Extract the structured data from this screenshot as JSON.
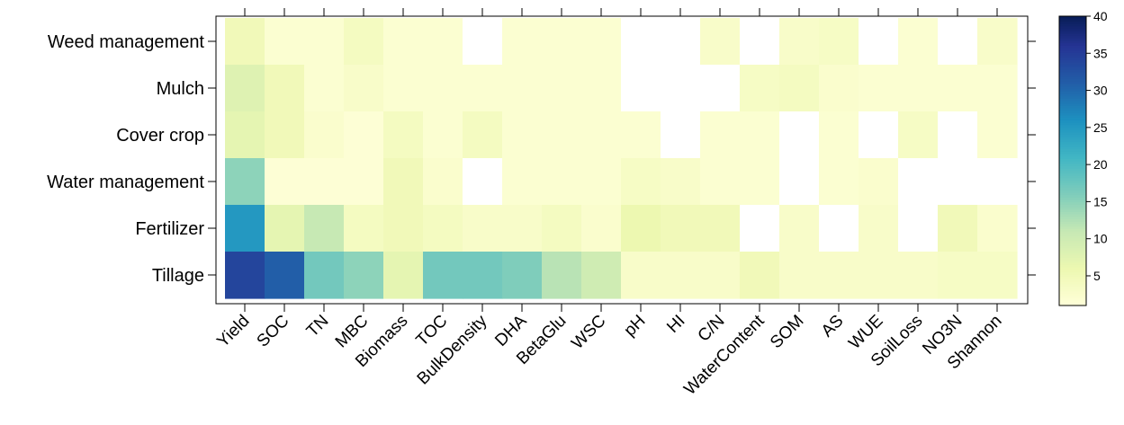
{
  "chart_data": {
    "type": "heatmap",
    "title": "",
    "xlabel": "",
    "ylabel": "",
    "columns": [
      "Yield",
      "SOC",
      "TN",
      "MBC",
      "Biomass",
      "TOC",
      "BulkDensity",
      "DHA",
      "BetaGlu",
      "WSC",
      "pH",
      "HI",
      "C/N",
      "WaterContent",
      "SOM",
      "AS",
      "WUE",
      "SoilLoss",
      "NO3N",
      "Shannon"
    ],
    "rows": [
      "Weed management",
      "Mulch",
      "Cover crop",
      "Water management",
      "Fertilizer",
      "Tillage"
    ],
    "values": [
      [
        5,
        2,
        2,
        4,
        2,
        2,
        null,
        2,
        2,
        2,
        null,
        null,
        3,
        null,
        3,
        3.5,
        null,
        2,
        null,
        3
      ],
      [
        8,
        5,
        2,
        3,
        2,
        2,
        2,
        2,
        2,
        2,
        null,
        null,
        null,
        3.5,
        4,
        2.5,
        2,
        2,
        2,
        2
      ],
      [
        7,
        5,
        2.5,
        1.5,
        4,
        2,
        4,
        2,
        2,
        2,
        2,
        null,
        2,
        2,
        null,
        2,
        null,
        3.5,
        null,
        2
      ],
      [
        15,
        1.5,
        1.5,
        1.5,
        5,
        2.5,
        null,
        2,
        2,
        2,
        3.5,
        3,
        2,
        2,
        null,
        2,
        2.5,
        null,
        null,
        null
      ],
      [
        25,
        7,
        11,
        4,
        5,
        4,
        3,
        3,
        4,
        2.5,
        6,
        5,
        5,
        null,
        3,
        null,
        3,
        null,
        5,
        2.5
      ],
      [
        34,
        31,
        17,
        15,
        7,
        17,
        17,
        16,
        12,
        10,
        3,
        3,
        3,
        5,
        3,
        3,
        3,
        3,
        3.5,
        3.5
      ]
    ],
    "color_scale": {
      "min": 1,
      "max": 40,
      "ticks": [
        5,
        10,
        15,
        20,
        25,
        30,
        35,
        40
      ],
      "stops": [
        {
          "v": 1,
          "c": "#ffffd9"
        },
        {
          "v": 6,
          "c": "#edf8b1"
        },
        {
          "v": 11,
          "c": "#c7e9b4"
        },
        {
          "v": 16,
          "c": "#7fcdbb"
        },
        {
          "v": 21,
          "c": "#41b6c4"
        },
        {
          "v": 26,
          "c": "#1d91c0"
        },
        {
          "v": 31,
          "c": "#225ea8"
        },
        {
          "v": 36,
          "c": "#253494"
        },
        {
          "v": 40,
          "c": "#081d58"
        }
      ]
    },
    "missing_color": "#ffffff",
    "legend_placement": "right",
    "grid": false
  }
}
